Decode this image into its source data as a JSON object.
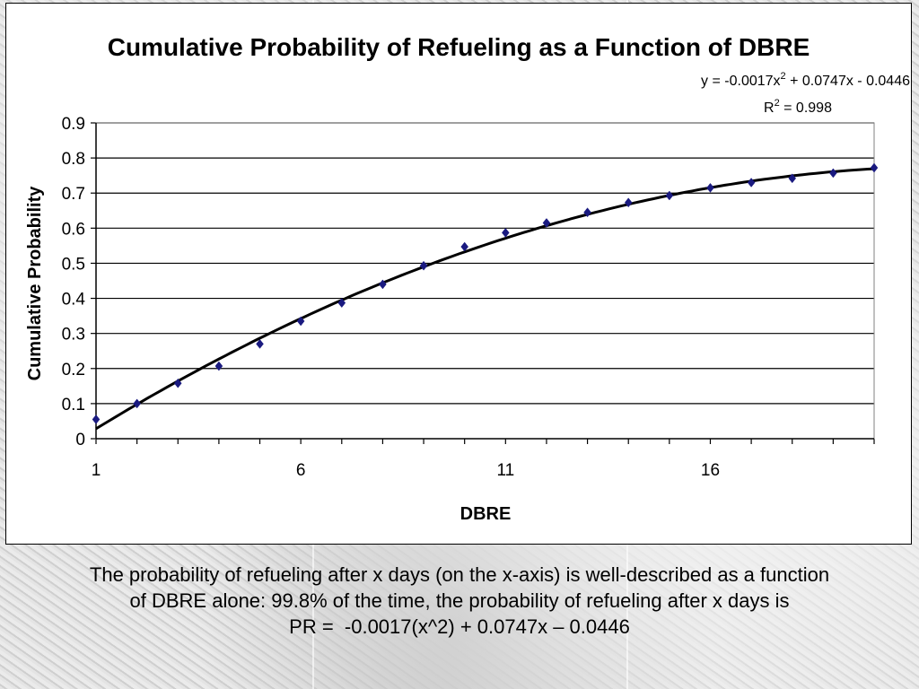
{
  "chart_data": {
    "type": "scatter",
    "title": "Cumulative Probability of Refueling as a Function of DBRE",
    "xlabel": "DBRE",
    "ylabel": "Cumulative Probability",
    "xlim": [
      1,
      20
    ],
    "ylim": [
      0,
      0.9
    ],
    "x_ticks": [
      "1",
      "6",
      "11",
      "16"
    ],
    "y_ticks": [
      "0",
      "0.1",
      "0.2",
      "0.3",
      "0.4",
      "0.5",
      "0.6",
      "0.7",
      "0.8",
      "0.9"
    ],
    "grid": "horizontal",
    "series": [
      {
        "marker": "diamond",
        "color": "#1a1a80",
        "x": [
          1,
          2,
          3,
          4,
          5,
          6,
          7,
          8,
          9,
          10,
          11,
          12,
          13,
          14,
          15,
          16,
          17,
          18,
          19,
          20
        ],
        "y": [
          0.055,
          0.1,
          0.158,
          0.207,
          0.27,
          0.335,
          0.387,
          0.44,
          0.493,
          0.547,
          0.587,
          0.615,
          0.645,
          0.673,
          0.693,
          0.715,
          0.73,
          0.742,
          0.757,
          0.772
        ]
      }
    ],
    "trendline": {
      "type": "polynomial",
      "coefficients": [
        -0.0017,
        0.0747,
        -0.0446
      ],
      "color": "#000000",
      "equation_text": "y = -0.0017x",
      "equation_sup": "2",
      "equation_rest": " + 0.0747x - 0.0446",
      "r2_text": "R",
      "r2_sup": "2",
      "r2_rest": " = 0.998"
    }
  },
  "caption": {
    "line1": "The probability of refueling after x days (on the x-axis) is well-described as a function",
    "line2": "of DBRE alone: 99.8% of the time, the probability of refueling after x days is",
    "line3": "PR =  -0.0017(x^2) + 0.0747x – 0.0446"
  }
}
